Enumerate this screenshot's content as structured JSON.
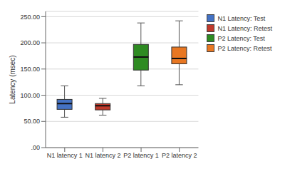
{
  "chart_data": {
    "type": "box",
    "categories": [
      "N1 latency 1",
      "N1 latency 2",
      "P2 latency 1",
      "P2 latency 2"
    ],
    "legend_labels": [
      "N1 Latency: Test",
      "N1 Latency: Retest",
      "P2 Latency: Test",
      "P2 Latency: Retest"
    ],
    "colors": [
      "#4472C4",
      "#C0392B",
      "#2E8B22",
      "#E87722"
    ],
    "ylabel": "Latency (msec)",
    "ylim": [
      0,
      260
    ],
    "yticks": [
      {
        "value": 0,
        "label": ".00"
      },
      {
        "value": 50,
        "label": "50.00"
      },
      {
        "value": 100,
        "label": "100.00"
      },
      {
        "value": 150,
        "label": "150.00"
      },
      {
        "value": 200,
        "label": "200.00"
      },
      {
        "value": 250,
        "label": "250.00"
      }
    ],
    "box_data": [
      {
        "whislo": 58,
        "q1": 73,
        "med": 84,
        "q3": 92,
        "whishi": 118
      },
      {
        "whislo": 62,
        "q1": 72,
        "med": 80,
        "q3": 84,
        "whishi": 94
      },
      {
        "whislo": 118,
        "q1": 148,
        "med": 173,
        "q3": 197,
        "whishi": 238
      },
      {
        "whislo": 120,
        "q1": 160,
        "med": 170,
        "q3": 192,
        "whishi": 242
      }
    ],
    "grid": true,
    "legend": "upper right"
  }
}
